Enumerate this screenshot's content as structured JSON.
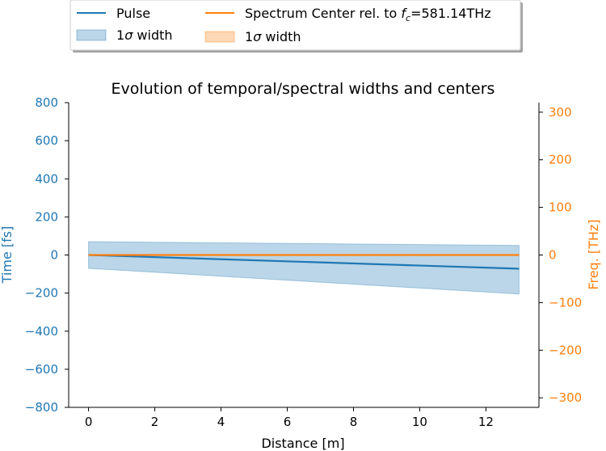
{
  "chart_data": {
    "type": "line",
    "title": "Evolution of temporal/spectral widths and centers",
    "xlabel": "Distance [m]",
    "ylabel_left": "Time [fs]",
    "ylabel_right": "Freq. [THz]",
    "xlim": [
      -0.6,
      13.6
    ],
    "ylim_left": [
      -800,
      800
    ],
    "ylim_right": [
      -320,
      320
    ],
    "x_ticks": [
      "0",
      "2",
      "4",
      "6",
      "8",
      "10",
      "12"
    ],
    "y_ticks_left": [
      "800",
      "600",
      "400",
      "200",
      "0",
      "−200",
      "−400",
      "−600",
      "−800"
    ],
    "y_ticks_right": [
      "300",
      "200",
      "100",
      "0",
      "−100",
      "−200",
      "−300"
    ],
    "grid": false,
    "legend_placement": "above plot",
    "colors": {
      "left": "#1f77b4",
      "right": "#ff7f0e"
    },
    "legend": [
      {
        "name": "Pulse",
        "kind": "line",
        "color": "#1f77b4"
      },
      {
        "name": "1σ width",
        "kind": "patch",
        "color": "#1f77b4"
      },
      {
        "name": "Spectrum Center rel. to f_c=581.14THz",
        "kind": "line",
        "color": "#ff7f0e"
      },
      {
        "name": "1σ width",
        "kind": "patch",
        "color": "#ff7f0e"
      }
    ],
    "series": [
      {
        "name": "Pulse",
        "axis": "left",
        "color": "#1f77b4",
        "x": [
          0,
          13
        ],
        "y": [
          0,
          -72
        ],
        "band_upper": [
          70,
          50
        ],
        "band_lower": [
          -70,
          -205
        ]
      },
      {
        "name": "Spectrum Center rel. to f_c=581.14THz",
        "axis": "right",
        "color": "#ff7f0e",
        "x": [
          0,
          13
        ],
        "y": [
          0,
          0
        ],
        "band_upper": [
          0.4,
          0.4
        ],
        "band_lower": [
          -0.4,
          -0.4
        ]
      }
    ]
  }
}
